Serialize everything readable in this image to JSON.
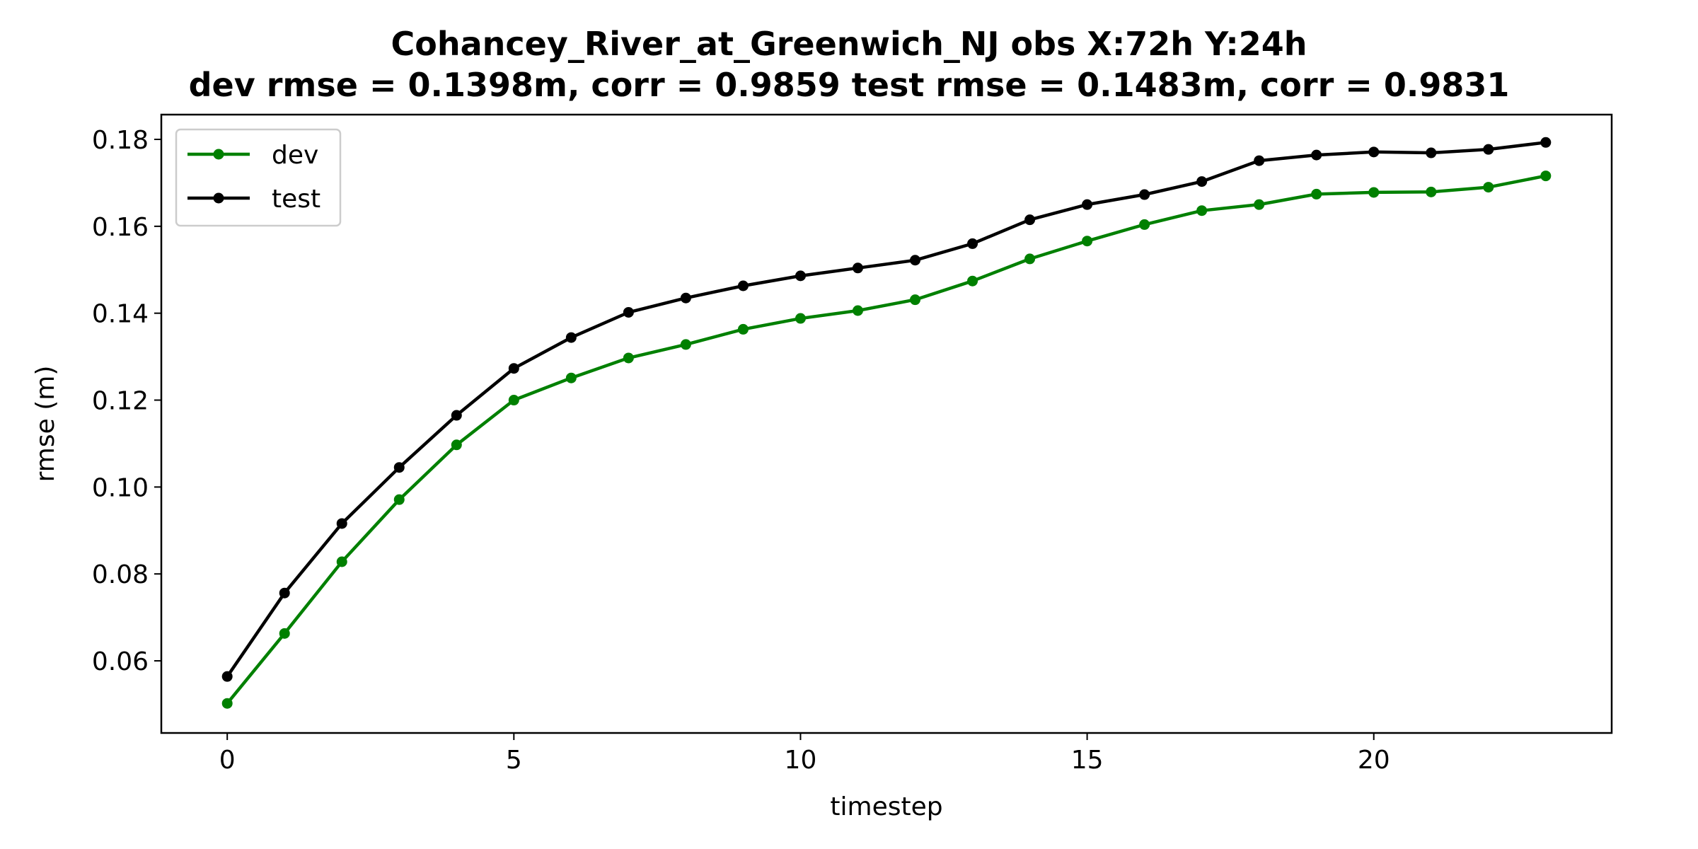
{
  "chart_data": {
    "type": "line",
    "title_line1": "Cohancey_River_at_Greenwich_NJ   obs   X:72h   Y:24h",
    "title_line2": "dev rmse = 0.1398m, corr = 0.9859   test rmse = 0.1483m, corr = 0.9831",
    "xlabel": "timestep",
    "ylabel": "rmse (m)",
    "xlim": [
      -1.15,
      24.15
    ],
    "ylim": [
      0.0434,
      0.1857
    ],
    "xticks": [
      0,
      5,
      10,
      15,
      20
    ],
    "yticks": [
      0.06,
      0.08,
      0.1,
      0.12,
      0.14,
      0.16,
      0.18
    ],
    "ytick_labels": [
      "0.06",
      "0.08",
      "0.10",
      "0.12",
      "0.14",
      "0.16",
      "0.18"
    ],
    "grid": false,
    "legend_position": "upper-left",
    "x": [
      0,
      1,
      2,
      3,
      4,
      5,
      6,
      7,
      8,
      9,
      10,
      11,
      12,
      13,
      14,
      15,
      16,
      17,
      18,
      19,
      20,
      21,
      22,
      23
    ],
    "series": [
      {
        "name": "dev",
        "color": "#008000",
        "values": [
          0.0502,
          0.0663,
          0.0828,
          0.0971,
          0.1097,
          0.12,
          0.1251,
          0.1297,
          0.1328,
          0.1363,
          0.1388,
          0.1406,
          0.1431,
          0.1474,
          0.1525,
          0.1566,
          0.1604,
          0.1636,
          0.165,
          0.1674,
          0.1678,
          0.1679,
          0.169,
          0.1716
        ]
      },
      {
        "name": "test",
        "color": "#000000",
        "values": [
          0.0564,
          0.0756,
          0.0916,
          0.1045,
          0.1165,
          0.1273,
          0.1344,
          0.1402,
          0.1435,
          0.1463,
          0.1486,
          0.1504,
          0.1522,
          0.156,
          0.1615,
          0.165,
          0.1673,
          0.1703,
          0.1751,
          0.1764,
          0.1771,
          0.1769,
          0.1777,
          0.1793
        ]
      }
    ]
  }
}
